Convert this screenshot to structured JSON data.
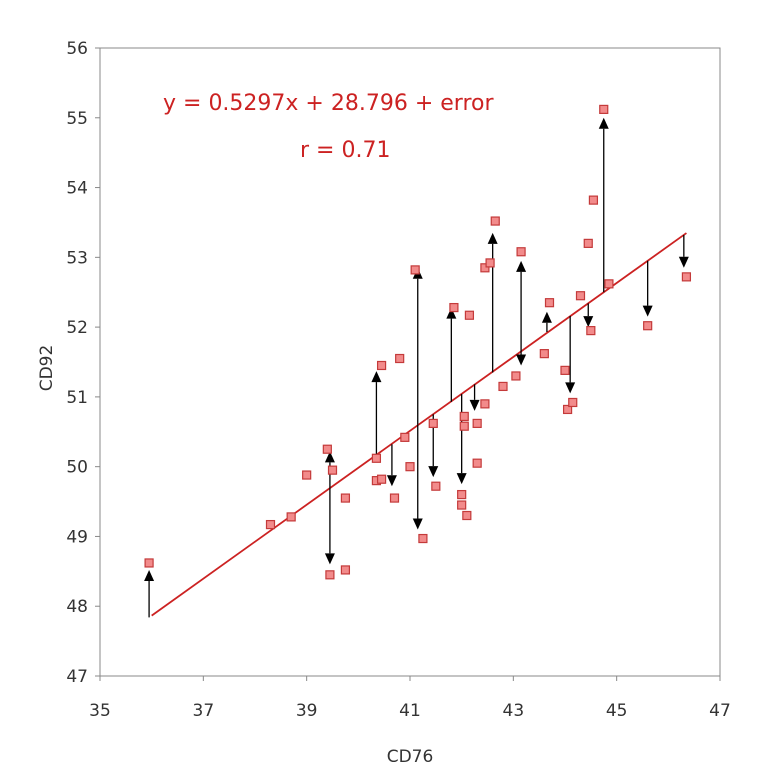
{
  "chart_data": {
    "type": "scatter",
    "xlabel": "CD76",
    "ylabel": "CD92",
    "xlim": [
      35,
      47
    ],
    "ylim": [
      47,
      56
    ],
    "x_ticks": [
      "35",
      "37",
      "39",
      "41",
      "43",
      "45",
      "47"
    ],
    "y_ticks": [
      "47",
      "48",
      "49",
      "50",
      "51",
      "52",
      "53",
      "54",
      "55",
      "56"
    ],
    "grid": false,
    "colors": {
      "points": "#f28b8b",
      "point_border": "#c43a3a",
      "fit_line": "#cc2222",
      "residual_arrows": "#000000"
    },
    "annotations": [
      "y = 0.5297x + 28.796 + error",
      "r = 0.71"
    ],
    "fit_line": {
      "slope": 0.5297,
      "intercept": 28.796,
      "x_range": [
        36.0,
        46.35
      ]
    },
    "points": [
      [
        35.95,
        48.62
      ],
      [
        38.3,
        49.17
      ],
      [
        38.7,
        49.28
      ],
      [
        39.0,
        49.88
      ],
      [
        39.4,
        50.25
      ],
      [
        39.45,
        48.45
      ],
      [
        39.5,
        49.95
      ],
      [
        39.75,
        49.55
      ],
      [
        39.75,
        48.52
      ],
      [
        40.35,
        50.12
      ],
      [
        40.35,
        49.8
      ],
      [
        40.45,
        51.45
      ],
      [
        40.45,
        49.82
      ],
      [
        40.7,
        49.55
      ],
      [
        40.8,
        51.55
      ],
      [
        40.9,
        50.42
      ],
      [
        41.0,
        50.0
      ],
      [
        41.1,
        52.82
      ],
      [
        41.25,
        48.97
      ],
      [
        41.45,
        50.62
      ],
      [
        41.5,
        49.72
      ],
      [
        41.85,
        52.28
      ],
      [
        42.0,
        49.6
      ],
      [
        42.0,
        49.45
      ],
      [
        42.05,
        50.58
      ],
      [
        42.05,
        50.72
      ],
      [
        42.1,
        49.3
      ],
      [
        42.15,
        52.17
      ],
      [
        42.3,
        50.05
      ],
      [
        42.3,
        50.62
      ],
      [
        42.45,
        52.85
      ],
      [
        42.45,
        50.9
      ],
      [
        42.55,
        52.92
      ],
      [
        42.65,
        53.52
      ],
      [
        42.8,
        51.15
      ],
      [
        43.05,
        51.3
      ],
      [
        43.15,
        53.08
      ],
      [
        43.6,
        51.62
      ],
      [
        43.7,
        52.35
      ],
      [
        44.0,
        51.38
      ],
      [
        44.05,
        50.82
      ],
      [
        44.15,
        50.92
      ],
      [
        44.3,
        52.45
      ],
      [
        44.45,
        53.2
      ],
      [
        44.5,
        51.95
      ],
      [
        44.55,
        53.82
      ],
      [
        44.75,
        55.12
      ],
      [
        44.85,
        52.62
      ],
      [
        45.6,
        52.02
      ],
      [
        46.35,
        52.72
      ]
    ],
    "residual_arrows": [
      [
        35.95,
        47.84,
        35.95,
        48.52
      ],
      [
        39.45,
        49.7,
        39.45,
        50.22
      ],
      [
        39.45,
        49.7,
        39.45,
        48.6
      ],
      [
        40.35,
        50.17,
        40.35,
        51.37
      ],
      [
        40.65,
        50.32,
        40.65,
        49.72
      ],
      [
        41.15,
        50.6,
        41.15,
        52.85
      ],
      [
        41.15,
        50.6,
        41.15,
        49.1
      ],
      [
        41.45,
        50.75,
        41.45,
        49.85
      ],
      [
        41.8,
        50.93,
        41.8,
        52.28
      ],
      [
        42.0,
        51.04,
        42.0,
        49.75
      ],
      [
        42.25,
        51.18,
        42.25,
        50.8
      ],
      [
        42.6,
        51.35,
        42.6,
        53.35
      ],
      [
        43.15,
        51.65,
        43.15,
        52.95
      ],
      [
        43.15,
        51.65,
        43.15,
        51.45
      ],
      [
        43.65,
        51.93,
        43.65,
        52.22
      ],
      [
        44.1,
        52.16,
        44.1,
        51.05
      ],
      [
        44.45,
        52.34,
        44.45,
        52.0
      ],
      [
        44.75,
        52.5,
        44.75,
        55.0
      ],
      [
        45.6,
        52.95,
        45.6,
        52.15
      ],
      [
        46.3,
        53.32,
        46.3,
        52.85
      ]
    ]
  }
}
